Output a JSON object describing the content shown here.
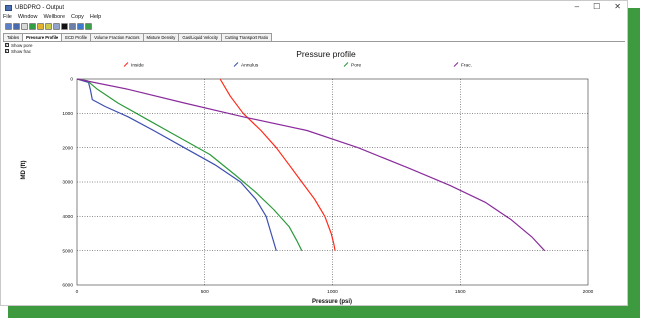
{
  "window": {
    "title": "UBDPRO - Output",
    "minimize": "–",
    "maximize": "☐",
    "close": "✕"
  },
  "menu": [
    "File",
    "Window",
    "Wellbore",
    "Copy",
    "Help"
  ],
  "toolbar_icons": [
    "open-icon",
    "save-icon",
    "print-icon",
    "export-icon",
    "chart-icon",
    "grid-icon",
    "table-icon",
    "color-icon",
    "list-icon",
    "settings-icon",
    "run-icon"
  ],
  "tabs": [
    "Tables",
    "Pressure Profile",
    "ECD Profile",
    "Volume Fraction Factors",
    "Mixture Density",
    "Gas/Liquid Velocity",
    "Cutting Transport Ratio"
  ],
  "active_tab": "Pressure Profile",
  "options": [
    {
      "label": "Show pore",
      "checked": true
    },
    {
      "label": "Show frac",
      "checked": true
    }
  ],
  "chart_data": {
    "type": "line",
    "title": "Pressure profile",
    "xlabel": "Pressure (psi)",
    "ylabel": "MD (ft)",
    "xlim": [
      0,
      2000
    ],
    "ylim": [
      0,
      6000
    ],
    "y_inverted": true,
    "xticks": [
      0,
      500,
      1000,
      1500,
      2000
    ],
    "yticks": [
      0,
      1000,
      2000,
      3000,
      4000,
      5000,
      6000
    ],
    "grid": true,
    "legend_position": "top",
    "series": [
      {
        "name": "Inside",
        "color": "#ff2a1a",
        "points": [
          [
            560,
            0
          ],
          [
            600,
            500
          ],
          [
            650,
            1000
          ],
          [
            720,
            1500
          ],
          [
            780,
            2000
          ],
          [
            830,
            2500
          ],
          [
            880,
            3000
          ],
          [
            930,
            3500
          ],
          [
            970,
            4000
          ],
          [
            995,
            4500
          ],
          [
            1005,
            4800
          ],
          [
            1010,
            5000
          ]
        ]
      },
      {
        "name": "Annulus",
        "color": "#3d4fb0",
        "points": [
          [
            0,
            0
          ],
          [
            45,
            100
          ],
          [
            52,
            300
          ],
          [
            60,
            600
          ],
          [
            110,
            800
          ],
          [
            200,
            1100
          ],
          [
            300,
            1500
          ],
          [
            420,
            2000
          ],
          [
            540,
            2500
          ],
          [
            640,
            3000
          ],
          [
            700,
            3500
          ],
          [
            740,
            4000
          ],
          [
            760,
            4500
          ],
          [
            780,
            5000
          ]
        ]
      },
      {
        "name": "Pore",
        "color": "#2b9a3a",
        "points": [
          [
            0,
            0
          ],
          [
            40,
            50
          ],
          [
            80,
            300
          ],
          [
            160,
            700
          ],
          [
            280,
            1200
          ],
          [
            400,
            1700
          ],
          [
            520,
            2200
          ],
          [
            620,
            2800
          ],
          [
            700,
            3300
          ],
          [
            770,
            3800
          ],
          [
            830,
            4300
          ],
          [
            860,
            4700
          ],
          [
            880,
            5000
          ]
        ]
      },
      {
        "name": "Frac.",
        "color": "#8a2c9c",
        "points": [
          [
            0,
            0
          ],
          [
            200,
            300
          ],
          [
            420,
            700
          ],
          [
            650,
            1100
          ],
          [
            900,
            1500
          ],
          [
            1100,
            2000
          ],
          [
            1300,
            2600
          ],
          [
            1460,
            3100
          ],
          [
            1600,
            3600
          ],
          [
            1700,
            4100
          ],
          [
            1780,
            4600
          ],
          [
            1830,
            5000
          ]
        ]
      }
    ]
  }
}
